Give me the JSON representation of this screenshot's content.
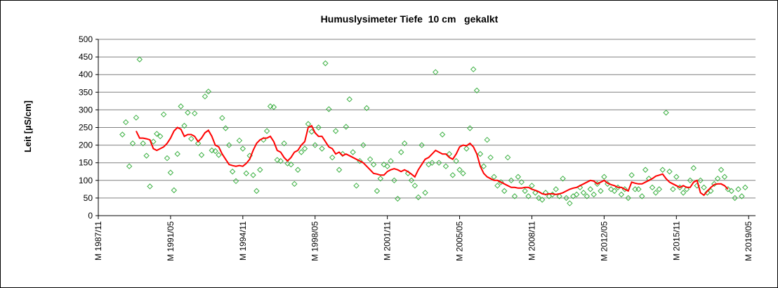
{
  "chart_data": {
    "type": "scatter",
    "title": "Humuslysimeter Tiefe  10 cm   gekalkt",
    "y_label": "Leit [µS/cm]",
    "ylim": [
      0,
      500
    ],
    "yticks": [
      0,
      50,
      100,
      150,
      200,
      250,
      300,
      350,
      400,
      450,
      500
    ],
    "grid": true,
    "xlim": [
      "1987/11",
      "2019/09"
    ],
    "xticks": [
      {
        "value": "1987/11",
        "label": "M 1987/11"
      },
      {
        "value": "1991/05",
        "label": "M 1991/05"
      },
      {
        "value": "1994/11",
        "label": "M 1994/11"
      },
      {
        "value": "1998/05",
        "label": "M 1998/05"
      },
      {
        "value": "2001/11",
        "label": "M 2001/11"
      },
      {
        "value": "2005/05",
        "label": "M 2005/05"
      },
      {
        "value": "2008/11",
        "label": "M 2008/11"
      },
      {
        "value": "2012/05",
        "label": "M 2012/05"
      },
      {
        "value": "2015/11",
        "label": "M 2015/11"
      },
      {
        "value": "2019/05",
        "label": "M 2019/05"
      }
    ],
    "series": [
      {
        "type": "scatter",
        "color": "#3cb043",
        "x": [
          "1989/01",
          "1989/03",
          "1989/05",
          "1989/07",
          "1989/09",
          "1989/11",
          "1990/01",
          "1990/03",
          "1990/05",
          "1990/07",
          "1990/09",
          "1990/11",
          "1991/01",
          "1991/03",
          "1991/05",
          "1991/07",
          "1991/09",
          "1991/11",
          "1992/01",
          "1992/03",
          "1992/05",
          "1992/07",
          "1992/09",
          "1992/11",
          "1993/01",
          "1993/03",
          "1993/05",
          "1993/07",
          "1993/09",
          "1993/11",
          "1994/01",
          "1994/03",
          "1994/05",
          "1994/07",
          "1994/09",
          "1994/11",
          "1995/01",
          "1995/03",
          "1995/05",
          "1995/07",
          "1995/09",
          "1995/11",
          "1996/01",
          "1996/03",
          "1996/05",
          "1996/07",
          "1996/09",
          "1996/11",
          "1997/01",
          "1997/03",
          "1997/05",
          "1997/07",
          "1997/09",
          "1997/11",
          "1998/01",
          "1998/03",
          "1998/05",
          "1998/07",
          "1998/09",
          "1998/11",
          "1999/01",
          "1999/03",
          "1999/05",
          "1999/07",
          "1999/09",
          "1999/11",
          "2000/01",
          "2000/03",
          "2000/05",
          "2000/07",
          "2000/09",
          "2000/11",
          "2001/01",
          "2001/03",
          "2001/05",
          "2001/07",
          "2001/09",
          "2001/11",
          "2002/01",
          "2002/03",
          "2002/05",
          "2002/07",
          "2002/09",
          "2002/11",
          "2003/01",
          "2003/03",
          "2003/05",
          "2003/07",
          "2003/09",
          "2003/11",
          "2004/01",
          "2004/03",
          "2004/05",
          "2004/07",
          "2004/09",
          "2004/11",
          "2005/01",
          "2005/03",
          "2005/05",
          "2005/07",
          "2005/09",
          "2005/11",
          "2006/01",
          "2006/03",
          "2006/05",
          "2006/07",
          "2006/09",
          "2006/11",
          "2007/01",
          "2007/03",
          "2007/05",
          "2007/07",
          "2007/09",
          "2007/11",
          "2008/01",
          "2008/03",
          "2008/05",
          "2008/07",
          "2008/09",
          "2008/11",
          "2009/01",
          "2009/03",
          "2009/05",
          "2009/07",
          "2009/09",
          "2009/11",
          "2010/01",
          "2010/03",
          "2010/05",
          "2010/07",
          "2010/09",
          "2010/11",
          "2011/01",
          "2011/03",
          "2011/05",
          "2011/07",
          "2011/09",
          "2011/11",
          "2012/01",
          "2012/03",
          "2012/05",
          "2012/07",
          "2012/09",
          "2012/11",
          "2013/01",
          "2013/03",
          "2013/05",
          "2013/07",
          "2013/09",
          "2013/11",
          "2014/01",
          "2014/03",
          "2014/05",
          "2014/07",
          "2014/09",
          "2014/11",
          "2015/01",
          "2015/03",
          "2015/05",
          "2015/07",
          "2015/09",
          "2015/11",
          "2016/01",
          "2016/03",
          "2016/05",
          "2016/07",
          "2016/09",
          "2016/11",
          "2017/01",
          "2017/03",
          "2017/05",
          "2017/07",
          "2017/09",
          "2017/11",
          "2018/01",
          "2018/03",
          "2018/05",
          "2018/07",
          "2018/09",
          "2018/11",
          "2019/01",
          "2019/03"
        ],
        "values": [
          230,
          265,
          140,
          205,
          278,
          443,
          205,
          170,
          83,
          210,
          232,
          225,
          287,
          163,
          122,
          72,
          175,
          310,
          255,
          292,
          218,
          290,
          205,
          172,
          338,
          352,
          185,
          183,
          172,
          277,
          248,
          200,
          125,
          98,
          213,
          190,
          120,
          170,
          115,
          70,
          130,
          215,
          240,
          310,
          308,
          158,
          155,
          205,
          148,
          145,
          90,
          130,
          180,
          190,
          260,
          238,
          200,
          250,
          190,
          432,
          302,
          165,
          240,
          130,
          175,
          252,
          330,
          180,
          85,
          155,
          200,
          305,
          160,
          145,
          70,
          105,
          145,
          140,
          155,
          100,
          48,
          180,
          205,
          120,
          100,
          85,
          52,
          200,
          65,
          145,
          150,
          407,
          150,
          230,
          140,
          175,
          115,
          155,
          130,
          120,
          190,
          248,
          415,
          355,
          175,
          140,
          215,
          165,
          110,
          85,
          95,
          70,
          165,
          100,
          55,
          110,
          95,
          70,
          55,
          85,
          65,
          50,
          45,
          65,
          55,
          60,
          75,
          55,
          105,
          50,
          35,
          55,
          60,
          80,
          65,
          55,
          75,
          60,
          90,
          70,
          110,
          90,
          75,
          70,
          80,
          60,
          75,
          50,
          115,
          75,
          75,
          55,
          130,
          105,
          80,
          65,
          75,
          130,
          292,
          125,
          75,
          110,
          80,
          65,
          75,
          100,
          135,
          85,
          100,
          80,
          65,
          70,
          90,
          105,
          130,
          110,
          75,
          70,
          50,
          75,
          55,
          80
        ]
      },
      {
        "type": "line",
        "color": "#ff0000",
        "x": [
          "1989/09",
          "1989/11",
          "1990/01",
          "1990/03",
          "1990/05",
          "1990/07",
          "1990/09",
          "1990/11",
          "1991/01",
          "1991/03",
          "1991/05",
          "1991/07",
          "1991/09",
          "1991/11",
          "1992/01",
          "1992/03",
          "1992/05",
          "1992/07",
          "1992/09",
          "1992/11",
          "1993/01",
          "1993/03",
          "1993/05",
          "1993/07",
          "1993/09",
          "1993/11",
          "1994/01",
          "1994/03",
          "1994/05",
          "1994/07",
          "1994/09",
          "1994/11",
          "1995/01",
          "1995/03",
          "1995/05",
          "1995/07",
          "1995/09",
          "1995/11",
          "1996/01",
          "1996/03",
          "1996/05",
          "1996/07",
          "1996/09",
          "1996/11",
          "1997/01",
          "1997/03",
          "1997/05",
          "1997/07",
          "1997/09",
          "1997/11",
          "1998/01",
          "1998/03",
          "1998/05",
          "1998/07",
          "1998/09",
          "1998/11",
          "1999/01",
          "1999/03",
          "1999/05",
          "1999/07",
          "1999/09",
          "1999/11",
          "2000/01",
          "2000/03",
          "2000/05",
          "2000/07",
          "2000/09",
          "2000/11",
          "2001/01",
          "2001/03",
          "2001/05",
          "2001/07",
          "2001/09",
          "2001/11",
          "2002/01",
          "2002/03",
          "2002/05",
          "2002/07",
          "2002/09",
          "2002/11",
          "2003/01",
          "2003/03",
          "2003/05",
          "2003/07",
          "2003/09",
          "2003/11",
          "2004/01",
          "2004/03",
          "2004/05",
          "2004/07",
          "2004/09",
          "2004/11",
          "2005/01",
          "2005/03",
          "2005/05",
          "2005/07",
          "2005/09",
          "2005/11",
          "2006/01",
          "2006/03",
          "2006/05",
          "2006/07",
          "2006/09",
          "2006/11",
          "2007/01",
          "2007/03",
          "2007/05",
          "2007/07",
          "2007/09",
          "2007/11",
          "2008/01",
          "2008/03",
          "2008/05",
          "2008/07",
          "2008/09",
          "2008/11",
          "2009/01",
          "2009/03",
          "2009/05",
          "2009/07",
          "2009/09",
          "2009/11",
          "2010/01",
          "2010/03",
          "2010/05",
          "2010/07",
          "2010/09",
          "2010/11",
          "2011/01",
          "2011/03",
          "2011/05",
          "2011/07",
          "2011/09",
          "2011/11",
          "2012/01",
          "2012/03",
          "2012/05",
          "2012/07",
          "2012/09",
          "2012/11",
          "2013/01",
          "2013/03",
          "2013/05",
          "2013/07",
          "2013/09",
          "2013/11",
          "2014/01",
          "2014/03",
          "2014/05",
          "2014/07",
          "2014/09",
          "2014/11",
          "2015/01",
          "2015/03",
          "2015/05",
          "2015/07",
          "2015/09",
          "2015/11",
          "2016/01",
          "2016/03",
          "2016/05",
          "2016/07",
          "2016/09",
          "2016/11",
          "2017/01",
          "2017/03",
          "2017/05",
          "2017/07",
          "2017/09",
          "2017/11",
          "2018/01",
          "2018/03",
          "2018/05"
        ],
        "values": [
          240,
          220,
          220,
          218,
          215,
          190,
          185,
          190,
          195,
          205,
          220,
          240,
          250,
          245,
          225,
          230,
          230,
          225,
          210,
          220,
          235,
          242,
          225,
          200,
          195,
          175,
          160,
          145,
          142,
          140,
          142,
          140,
          148,
          160,
          185,
          205,
          215,
          220,
          220,
          225,
          210,
          185,
          180,
          165,
          155,
          165,
          180,
          185,
          200,
          210,
          250,
          255,
          235,
          225,
          225,
          210,
          195,
          190,
          175,
          180,
          170,
          175,
          170,
          165,
          160,
          155,
          150,
          140,
          130,
          120,
          118,
          115,
          115,
          125,
          130,
          133,
          130,
          125,
          130,
          125,
          118,
          110,
          130,
          145,
          160,
          165,
          175,
          185,
          180,
          175,
          175,
          165,
          160,
          175,
          195,
          200,
          198,
          205,
          195,
          175,
          140,
          120,
          110,
          105,
          100,
          100,
          95,
          90,
          85,
          80,
          80,
          78,
          78,
          80,
          80,
          75,
          72,
          68,
          62,
          60,
          62,
          62,
          60,
          62,
          65,
          70,
          75,
          78,
          80,
          85,
          90,
          95,
          100,
          98,
          90,
          95,
          100,
          92,
          88,
          85,
          80,
          80,
          75,
          70,
          95,
          92,
          90,
          90,
          95,
          100,
          105,
          112,
          115,
          118,
          105,
          95,
          90,
          85,
          80,
          85,
          80,
          80,
          95,
          100,
          65,
          58,
          70,
          80,
          88,
          90,
          90,
          85,
          75
        ]
      }
    ]
  }
}
